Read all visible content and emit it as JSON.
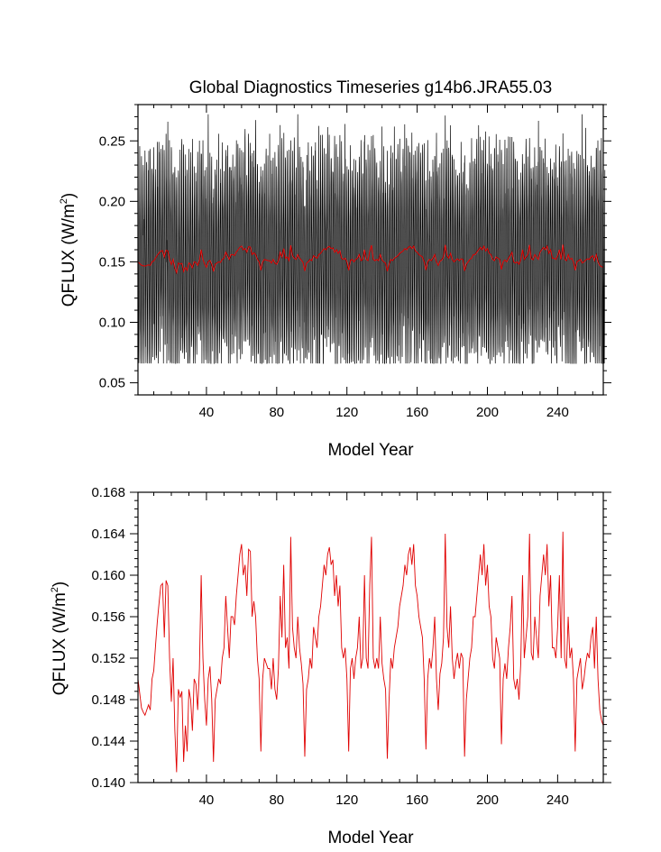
{
  "colors": {
    "monthly": "#000000",
    "annual": "#e00000",
    "axis": "#000000"
  },
  "chart_data": [
    {
      "type": "line",
      "title": "Global Diagnostics Timeseries g14b6.JRA55.03",
      "ylabel": {
        "main": "QFLUX (W/m",
        "sup": "2",
        "end": ")"
      },
      "xlabel": "Model Year",
      "xlim": [
        1,
        266
      ],
      "ylim": [
        0.04,
        0.28
      ],
      "xticks": [
        40,
        80,
        120,
        160,
        200,
        240
      ],
      "xtick_labels": [
        "40",
        "80",
        "120",
        "160",
        "200",
        "240"
      ],
      "yticks": [
        0.05,
        0.1,
        0.15,
        0.2,
        0.25
      ],
      "ytick_labels": [
        "0.05",
        "0.10",
        "0.15",
        "0.20",
        "0.25"
      ],
      "series": [
        {
          "name": "monthly",
          "color": "#000000",
          "description": "monthly QFLUX, values oscillate roughly between 0.07 and 0.27 around mean 0.15"
        },
        {
          "name": "annual",
          "color": "#e00000",
          "ref": "annual_values"
        }
      ]
    },
    {
      "type": "line",
      "title": "",
      "ylabel": {
        "main": "QFLUX (W/m",
        "sup": "2",
        "end": ")"
      },
      "xlabel": "Model Year",
      "xlim": [
        1,
        266
      ],
      "ylim": [
        0.14,
        0.168
      ],
      "xticks": [
        40,
        80,
        120,
        160,
        200,
        240
      ],
      "xtick_labels": [
        "40",
        "80",
        "120",
        "160",
        "200",
        "240"
      ],
      "yticks": [
        0.14,
        0.144,
        0.148,
        0.152,
        0.156,
        0.16,
        0.164,
        0.168
      ],
      "ytick_labels": [
        "0.140",
        "0.144",
        "0.148",
        "0.152",
        "0.156",
        "0.160",
        "0.164",
        "0.168"
      ],
      "series": [
        {
          "name": "annual",
          "color": "#e00000",
          "x_start": 1,
          "x_step": 1,
          "annual_values": []
        }
      ]
    }
  ]
}
